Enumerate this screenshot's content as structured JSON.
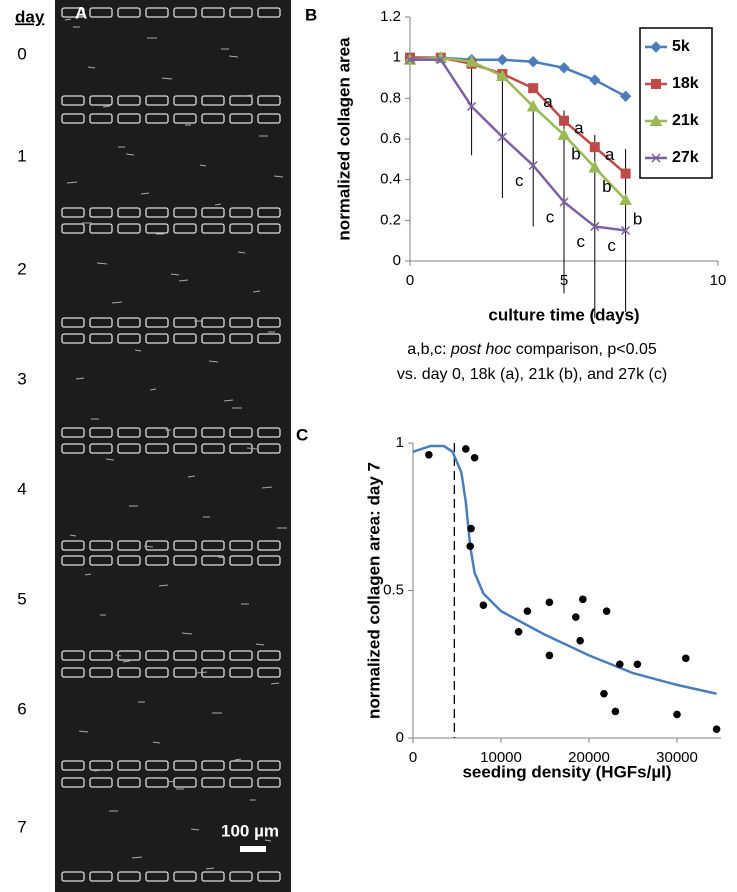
{
  "panel_a": {
    "label": "A",
    "day_header": "day",
    "days": [
      "0",
      "1",
      "2",
      "3",
      "4",
      "5",
      "6",
      "7"
    ],
    "scale_bar": "100 µm"
  },
  "panel_labels": {
    "b": "B",
    "c": "C"
  },
  "note": {
    "line1": [
      "a,b,c: ",
      "post hoc",
      " comparison, p<0.05"
    ],
    "line2": "vs. day 0, 18k (a), 21k (b), and 27k (c)"
  },
  "chart_data": [
    {
      "type": "line",
      "x_label": "culture time (days)",
      "y_label": "normalized collagen area",
      "x": [
        0,
        1,
        2,
        3,
        4,
        5,
        6,
        7
      ],
      "xlim": [
        0,
        10
      ],
      "xticks": [
        0,
        5,
        10
      ],
      "ylim": [
        0,
        1.2
      ],
      "yticks": [
        0,
        0.2,
        0.4,
        0.6,
        0.8,
        1,
        1.2
      ],
      "legend": "top-right",
      "series": [
        {
          "name": "5k",
          "color": "#4a7ebb",
          "marker": "diamond",
          "values": [
            1,
            1,
            0.99,
            0.99,
            0.98,
            0.95,
            0.89,
            0.81
          ]
        },
        {
          "name": "18k",
          "color": "#be4b48",
          "marker": "square",
          "values": [
            1,
            1,
            0.97,
            0.92,
            0.85,
            0.69,
            0.56,
            0.43
          ],
          "point_labels": [
            null,
            null,
            null,
            null,
            null,
            "a",
            "a",
            "a"
          ]
        },
        {
          "name": "21k",
          "color": "#98b954",
          "marker": "triangle",
          "values": [
            0.99,
            1,
            0.98,
            0.91,
            0.76,
            0.62,
            0.46,
            0.3
          ],
          "point_labels": [
            null,
            null,
            null,
            null,
            null,
            "b",
            "b",
            "b"
          ]
        },
        {
          "name": "27k",
          "color": "#7d60a0",
          "marker": "x",
          "values": [
            0.99,
            0.99,
            0.76,
            0.61,
            0.47,
            0.29,
            0.17,
            0.15
          ],
          "errors": [
            null,
            null,
            0.24,
            0.3,
            0.3,
            0.45,
            0.45,
            0.4
          ],
          "point_labels": [
            null,
            null,
            null,
            null,
            "c",
            "c",
            "c",
            "c"
          ]
        }
      ]
    },
    {
      "type": "scatter",
      "x_label": "seeding density (HGFs/µl)",
      "y_label": "normalized collagen area: day 7",
      "xlim": [
        0,
        35000
      ],
      "xticks": [
        0,
        10000,
        20000,
        30000
      ],
      "ylim": [
        0,
        1
      ],
      "yticks": [
        0,
        0.5,
        1
      ],
      "vline": 4700,
      "series": [
        {
          "color": "#000000",
          "x": [
            1800,
            6000,
            7000,
            6600,
            6500,
            8000,
            12000,
            13000,
            15500,
            15500,
            18500,
            19000,
            19300,
            21700,
            22000,
            23000,
            23500,
            25500,
            30000,
            31000,
            34500
          ],
          "values": [
            0.96,
            0.98,
            0.95,
            0.71,
            0.65,
            0.45,
            0.36,
            0.43,
            0.46,
            0.28,
            0.41,
            0.33,
            0.47,
            0.15,
            0.43,
            0.09,
            0.25,
            0.25,
            0.08,
            0.27,
            0.03
          ]
        }
      ],
      "fit": {
        "color": "#4a7ebb",
        "x": [
          0,
          2000,
          3500,
          4500,
          5500,
          6000,
          6500,
          7000,
          8000,
          10000,
          15000,
          20000,
          25000,
          30000,
          34500
        ],
        "values": [
          0.97,
          0.99,
          0.99,
          0.97,
          0.9,
          0.8,
          0.65,
          0.56,
          0.49,
          0.43,
          0.35,
          0.28,
          0.22,
          0.18,
          0.15
        ]
      }
    }
  ]
}
